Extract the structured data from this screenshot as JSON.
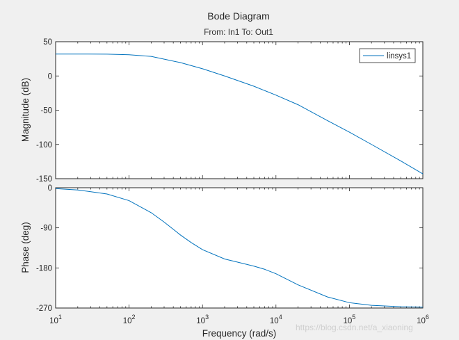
{
  "chart_data": {
    "type": "line",
    "title": "Bode Diagram",
    "subtitle": "From: In1  To: Out1",
    "xlabel": "Frequency  (rad/s)",
    "xscale": "log",
    "xlim": [
      10,
      1000000
    ],
    "x_ticks": [
      {
        "value": 10,
        "base": "10",
        "exp": "1"
      },
      {
        "value": 100,
        "base": "10",
        "exp": "2"
      },
      {
        "value": 1000,
        "base": "10",
        "exp": "3"
      },
      {
        "value": 10000,
        "base": "10",
        "exp": "4"
      },
      {
        "value": 100000,
        "base": "10",
        "exp": "5"
      },
      {
        "value": 1000000,
        "base": "10",
        "exp": "6"
      }
    ],
    "grid": false,
    "panels": [
      {
        "name": "magnitude",
        "ylabel": "Magnitude (dB)",
        "ylim": [
          -150,
          50
        ],
        "yticks": [
          50,
          0,
          -50,
          -100,
          -150
        ],
        "legend": {
          "entries": [
            "linsys1"
          ],
          "placement": "top-right"
        },
        "series": [
          {
            "name": "linsys1",
            "color": "#0072bd",
            "x": [
              10,
              20,
              50,
              100,
              200,
              500,
              1000,
              2000,
              5000,
              10000,
              20000,
              50000,
              100000,
              200000,
              500000,
              1000000
            ],
            "y": [
              32,
              32,
              31.8,
              31,
              28.5,
              19.5,
              10.5,
              0,
              -15,
              -28,
              -42,
              -65,
              -82,
              -100,
              -124,
              -143
            ]
          }
        ]
      },
      {
        "name": "phase",
        "ylabel": "Phase (deg)",
        "ylim": [
          -270,
          0
        ],
        "yticks": [
          0,
          -90,
          -180,
          -270
        ],
        "series": [
          {
            "name": "linsys1",
            "color": "#0072bd",
            "x": [
              10,
              20,
              50,
              100,
              200,
              300,
              500,
              700,
              1000,
              2000,
              3000,
              5000,
              7000,
              10000,
              20000,
              50000,
              100000,
              200000,
              500000,
              1000000
            ],
            "y": [
              -2,
              -5,
              -14,
              -29,
              -56,
              -77,
              -106,
              -123,
              -139,
              -160,
              -167,
              -176,
              -183,
              -193,
              -218,
              -245,
              -258,
              -264,
              -267,
              -268
            ]
          }
        ]
      }
    ]
  },
  "watermark": "https://blog.csdn.net/a_xiaoning"
}
